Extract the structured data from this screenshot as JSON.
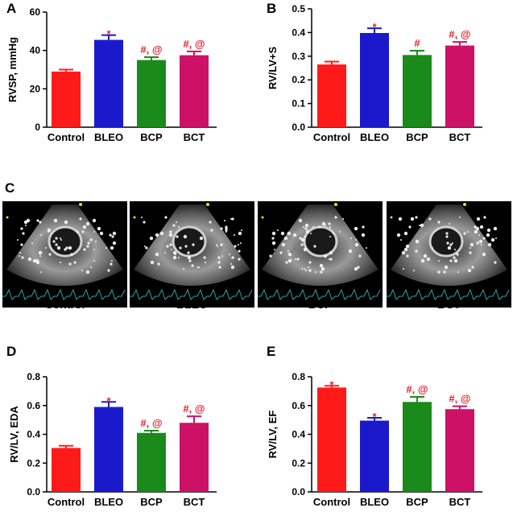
{
  "colors": {
    "Control": "#ff1a1a",
    "BLEO": "#1a1acc",
    "BCP": "#1a8a1a",
    "BCT": "#cc1166",
    "annotation": "#e8202a"
  },
  "chart_data": [
    {
      "panel": "A",
      "type": "bar",
      "ylabel": "RVSP, mmHg",
      "categories": [
        "Control",
        "BLEO",
        "BCP",
        "BCT"
      ],
      "values": [
        29,
        45.5,
        35,
        37.5
      ],
      "errors": [
        1,
        2.5,
        1.5,
        2
      ],
      "ylim": [
        0,
        60
      ],
      "yticks": [
        0,
        20,
        40,
        60
      ],
      "annotations": [
        "",
        "*",
        "#, @",
        "#, @"
      ]
    },
    {
      "panel": "B",
      "type": "bar",
      "ylabel": "RV/LV+S",
      "categories": [
        "Control",
        "BLEO",
        "BCP",
        "BCT"
      ],
      "values": [
        0.265,
        0.398,
        0.305,
        0.345
      ],
      "errors": [
        0.012,
        0.02,
        0.018,
        0.015
      ],
      "ylim": [
        0,
        0.5
      ],
      "yticks": [
        0.0,
        0.1,
        0.2,
        0.3,
        0.4,
        0.5
      ],
      "annotations": [
        "",
        "*",
        "#",
        "#, @"
      ]
    },
    {
      "panel": "D",
      "type": "bar",
      "ylabel": "RV/LV, EDA",
      "categories": [
        "Control",
        "BLEO",
        "BCP",
        "BCT"
      ],
      "values": [
        0.305,
        0.59,
        0.41,
        0.48
      ],
      "errors": [
        0.015,
        0.035,
        0.015,
        0.045
      ],
      "ylim": [
        0,
        0.8
      ],
      "yticks": [
        0.0,
        0.2,
        0.4,
        0.6,
        0.8
      ],
      "annotations": [
        "",
        "*",
        "#, @",
        "#, @"
      ]
    },
    {
      "panel": "E",
      "type": "bar",
      "ylabel": "RV/LV, EF",
      "categories": [
        "Control",
        "BLEO",
        "BCP",
        "BCT"
      ],
      "values": [
        0.725,
        0.495,
        0.625,
        0.575
      ],
      "errors": [
        0.012,
        0.02,
        0.035,
        0.02
      ],
      "ylim": [
        0,
        0.8
      ],
      "yticks": [
        0.0,
        0.2,
        0.4,
        0.6,
        0.8
      ],
      "annotations": [
        "*",
        "*",
        "#, @",
        "#, @"
      ]
    }
  ],
  "panel_c": {
    "letter": "C",
    "labels": [
      "Control",
      "BLEO",
      "BCP",
      "BCT"
    ]
  }
}
